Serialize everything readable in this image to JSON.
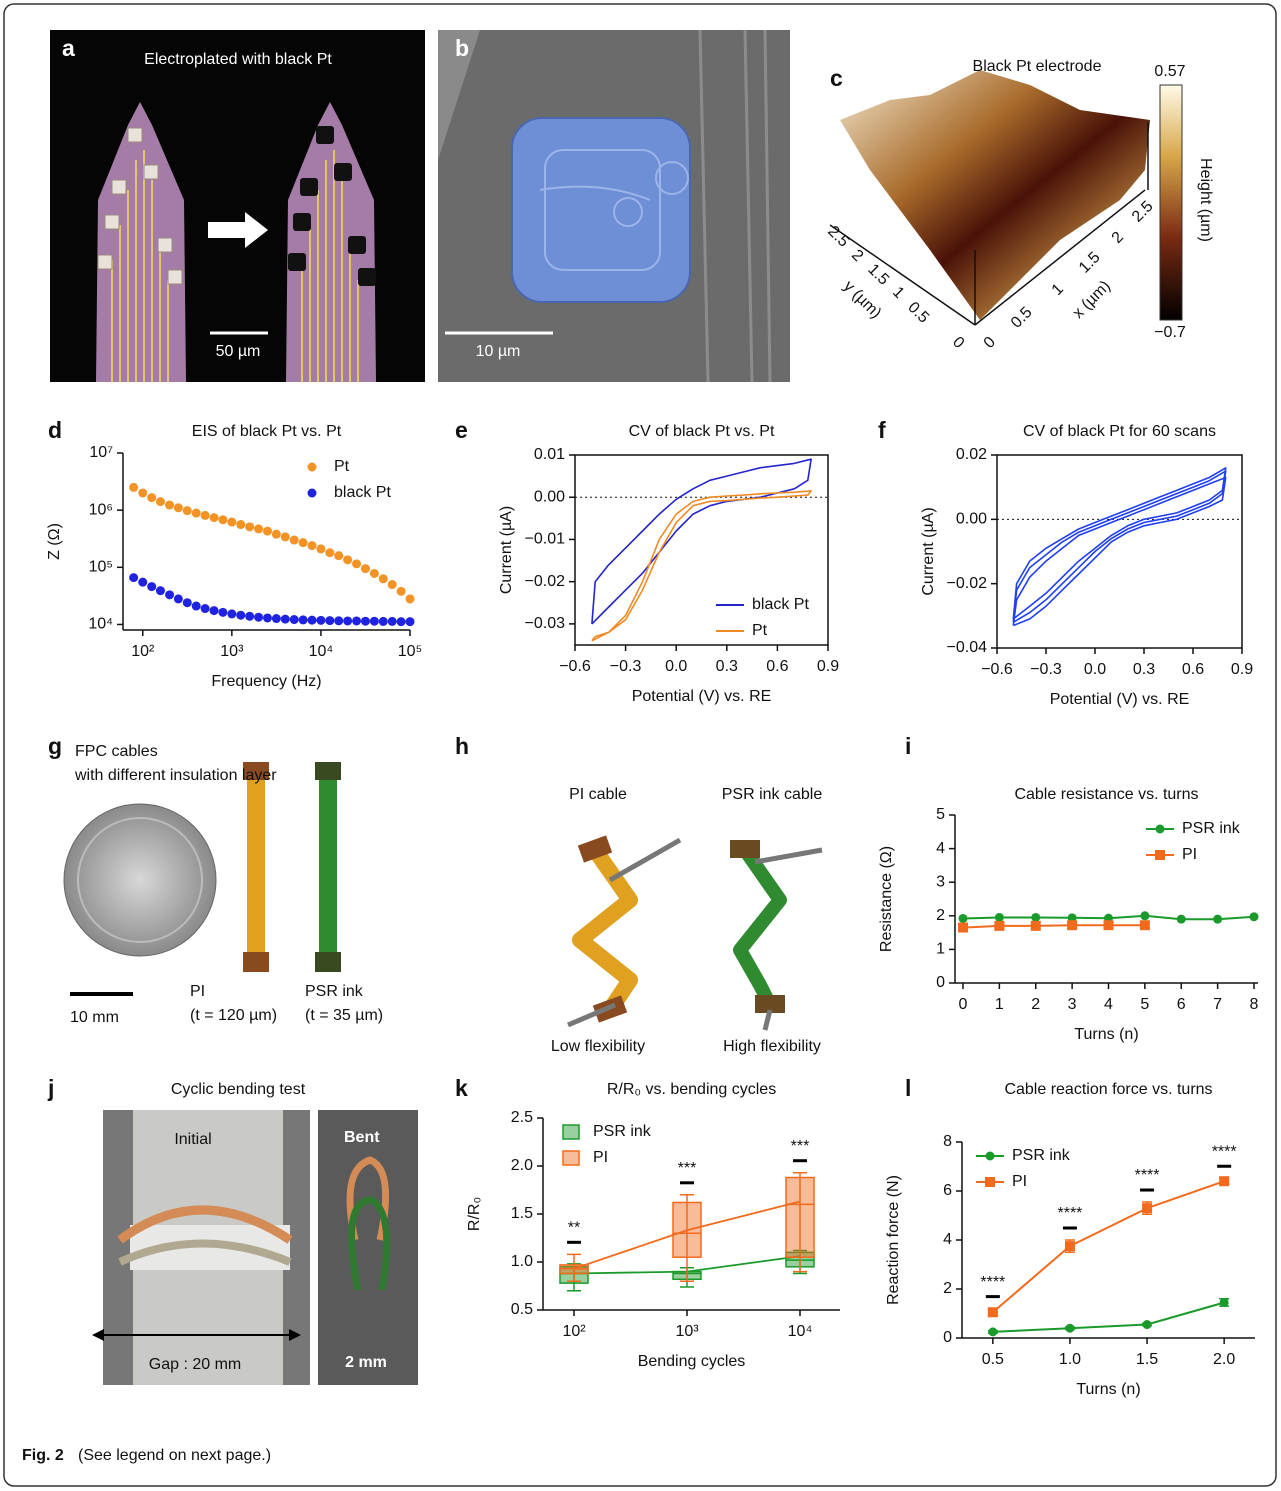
{
  "panels": {
    "a": {
      "label": "a",
      "title": "Electroplated with black Pt",
      "scale": "50 µm"
    },
    "b": {
      "label": "b",
      "scale": "10 µm"
    },
    "c": {
      "label": "c",
      "title": "Black Pt electrode",
      "colorbar_max": "0.57",
      "colorbar_min": "−0.7",
      "colorbar_label": "Height (µm)",
      "y_ticks": [
        "2.5",
        "2",
        "1.5",
        "1",
        "0.5",
        "0"
      ],
      "y_label": "y (µm)",
      "x_ticks": [
        "0",
        "0.5",
        "1",
        "1.5",
        "2",
        "2.5"
      ],
      "x_label": "x (µm)"
    },
    "g": {
      "label": "g",
      "title_1": "FPC cables",
      "title_2": "with different insulation layer",
      "pi": "PI",
      "pi_thickness": "(t = 120 µm)",
      "psr": "PSR ink",
      "psr_thickness": "(t = 35 µm)",
      "scale": "10 mm"
    },
    "h": {
      "label": "h",
      "pi": "PI cable",
      "psr": "PSR ink cable",
      "pi_note": "Low flexibility",
      "psr_note": "High flexibility"
    },
    "j": {
      "label": "j",
      "title": "Cyclic bending test",
      "initial": "Initial",
      "bent": "Bent",
      "gap": "Gap : 20 mm",
      "bent_gap": "2 mm"
    }
  },
  "chart_data": [
    {
      "panel": "d",
      "type": "scatter",
      "title": "EIS of black Pt vs. Pt",
      "x_label": "Frequency (Hz)",
      "y_label": "Z (Ω)",
      "xscale": "log",
      "yscale": "log",
      "xlim": [
        60,
        100000
      ],
      "ylim": [
        8000,
        10000000
      ],
      "xticks": [
        {
          "value": 100,
          "label": "10²"
        },
        {
          "value": 1000,
          "label": "10³"
        },
        {
          "value": 10000,
          "label": "10⁴"
        },
        {
          "value": 100000,
          "label": "10⁵"
        }
      ],
      "yticks": [
        {
          "value": 10000,
          "label": "10⁴"
        },
        {
          "value": 100000,
          "label": "10⁵"
        },
        {
          "value": 1000000,
          "label": "10⁶"
        },
        {
          "value": 10000000,
          "label": "10⁷"
        }
      ],
      "legend": "upper right",
      "x": [
        79,
        100,
        126,
        158,
        200,
        251,
        316,
        398,
        501,
        631,
        794,
        1000,
        1259,
        1585,
        1995,
        2512,
        3162,
        3981,
        5012,
        6310,
        7943,
        10000,
        12589,
        15849,
        19953,
        25119,
        31623,
        39811,
        50119,
        63096,
        79433,
        100000
      ],
      "series": [
        {
          "name": "Pt",
          "color": "#f39325",
          "values": [
            2500000,
            2000000,
            1660000,
            1410000,
            1230000,
            1100000,
            980000,
            890000,
            810000,
            740000,
            680000,
            620000,
            560000,
            510000,
            470000,
            430000,
            380000,
            340000,
            300000,
            270000,
            240000,
            210000,
            180000,
            160000,
            135000,
            115000,
            95000,
            78000,
            63000,
            50000,
            38000,
            28000
          ]
        },
        {
          "name": "black Pt",
          "color": "#1f23e0",
          "values": [
            66000,
            55000,
            46000,
            39000,
            33000,
            28000,
            24000,
            21000,
            19000,
            17500,
            16300,
            15300,
            14500,
            13900,
            13400,
            13000,
            12700,
            12400,
            12200,
            12000,
            11900,
            11800,
            11700,
            11600,
            11500,
            11500,
            11400,
            11400,
            11300,
            11300,
            11200,
            11200
          ]
        }
      ]
    },
    {
      "panel": "e",
      "type": "line",
      "title": "CV of black Pt vs. Pt",
      "x_label": "Potential (V) vs. RE",
      "y_label": "Current (µA)",
      "xlim": [
        -0.6,
        0.9
      ],
      "ylim": [
        -0.035,
        0.01
      ],
      "zero_line": true,
      "legend": "lower right",
      "xticks": [
        {
          "value": -0.6,
          "label": "−0.6"
        },
        {
          "value": -0.3,
          "label": "−0.3"
        },
        {
          "value": 0,
          "label": "0.0"
        },
        0.3,
        0.6,
        0.9
      ],
      "yticks": [
        {
          "value": -0.03,
          "label": "−0.03"
        },
        {
          "value": -0.02,
          "label": "−0.02"
        },
        {
          "value": -0.01,
          "label": "−0.01"
        },
        {
          "value": 0,
          "label": "0.00"
        },
        0.01
      ],
      "x": [
        -0.5,
        -0.48,
        -0.4,
        -0.3,
        -0.2,
        -0.1,
        0,
        0.1,
        0.2,
        0.3,
        0.4,
        0.5,
        0.6,
        0.7,
        0.8,
        0.78,
        0.7,
        0.6,
        0.5,
        0.4,
        0.3,
        0.2,
        0.1,
        0,
        -0.1,
        -0.2,
        -0.3,
        -0.4,
        -0.5
      ],
      "series": [
        {
          "name": "black Pt",
          "color": "#2424cc",
          "values": [
            -0.03,
            -0.02,
            -0.016,
            -0.012,
            -0.008,
            -0.004,
            -0.0005,
            0.002,
            0.004,
            0.005,
            0.006,
            0.007,
            0.0075,
            0.008,
            0.009,
            0.004,
            0.002,
            0.001,
            0,
            -0.0005,
            -0.001,
            -0.002,
            -0.004,
            -0.008,
            -0.013,
            -0.018,
            -0.022,
            -0.026,
            -0.03
          ]
        },
        {
          "name": "Pt",
          "color": "#f08a24",
          "values": [
            -0.034,
            -0.033,
            -0.032,
            -0.028,
            -0.02,
            -0.01,
            -0.004,
            -0.001,
            0,
            0.0003,
            0.0005,
            0.0008,
            0.001,
            0.0012,
            0.0015,
            0.0005,
            0.0003,
            0,
            -0.0002,
            -0.0005,
            -0.0008,
            -0.001,
            -0.002,
            -0.006,
            -0.013,
            -0.022,
            -0.029,
            -0.032,
            -0.034
          ]
        }
      ]
    },
    {
      "panel": "f",
      "type": "line",
      "title": "CV of black Pt for 60 scans",
      "x_label": "Potential (V) vs. RE",
      "y_label": "Current (µA)",
      "xlim": [
        -0.6,
        0.9
      ],
      "ylim": [
        -0.04,
        0.02
      ],
      "zero_line": true,
      "xticks": [
        {
          "value": -0.6,
          "label": "−0.6"
        },
        {
          "value": -0.3,
          "label": "−0.3"
        },
        {
          "value": 0,
          "label": "0.0"
        },
        0.3,
        0.6,
        0.9
      ],
      "yticks": [
        {
          "value": -0.04,
          "label": "−0.04"
        },
        {
          "value": -0.02,
          "label": "−0.02"
        },
        {
          "value": 0,
          "label": "0.00"
        },
        {
          "value": 0.02,
          "label": "0.02"
        }
      ],
      "x": [
        -0.5,
        -0.48,
        -0.4,
        -0.3,
        -0.2,
        -0.1,
        0,
        0.1,
        0.2,
        0.3,
        0.4,
        0.5,
        0.6,
        0.7,
        0.8,
        0.78,
        0.7,
        0.6,
        0.5,
        0.4,
        0.3,
        0.2,
        0.1,
        0,
        -0.1,
        -0.2,
        -0.3,
        -0.4,
        -0.5
      ],
      "series": [
        {
          "color": "#1f3ff0",
          "values": [
            -0.032,
            -0.022,
            -0.015,
            -0.011,
            -0.007,
            -0.004,
            -0.002,
            0,
            0.002,
            0.004,
            0.006,
            0.008,
            0.01,
            0.012,
            0.015,
            0.008,
            0.005,
            0.003,
            0.001,
            0,
            -0.001,
            -0.003,
            -0.006,
            -0.01,
            -0.015,
            -0.02,
            -0.025,
            -0.029,
            -0.032
          ]
        },
        {
          "color": "#1f3ff0",
          "values": [
            -0.033,
            -0.025,
            -0.018,
            -0.013,
            -0.009,
            -0.005,
            -0.003,
            -0.001,
            0.001,
            0.003,
            0.005,
            0.007,
            0.009,
            0.011,
            0.013,
            0.006,
            0.004,
            0.002,
            0,
            -0.001,
            -0.002,
            -0.004,
            -0.007,
            -0.012,
            -0.017,
            -0.022,
            -0.027,
            -0.031,
            -0.033
          ]
        },
        {
          "color": "#1f3ff0",
          "values": [
            -0.031,
            -0.02,
            -0.013,
            -0.009,
            -0.006,
            -0.003,
            -0.001,
            0.001,
            0.003,
            0.005,
            0.007,
            0.009,
            0.011,
            0.013,
            0.016,
            0.009,
            0.006,
            0.004,
            0.002,
            0.001,
            0,
            -0.002,
            -0.005,
            -0.009,
            -0.013,
            -0.018,
            -0.023,
            -0.027,
            -0.031
          ]
        }
      ]
    },
    {
      "panel": "i",
      "type": "line",
      "title": "Cable resistance vs. turns",
      "x_label": "Turns (n)",
      "y_label": "Resistance (Ω)",
      "xlim": [
        0,
        8
      ],
      "ylim": [
        0,
        5
      ],
      "xticks": [
        0,
        1,
        2,
        3,
        4,
        5,
        6,
        7,
        8
      ],
      "yticks": [
        0,
        1,
        2,
        3,
        4,
        5
      ],
      "legend": "upper right",
      "x": [
        0,
        1,
        2,
        3,
        4,
        5,
        6,
        7,
        8
      ],
      "series": [
        {
          "name": "PSR ink",
          "color": "#1a9a2a",
          "marker": "circle",
          "values": [
            1.92,
            1.95,
            1.95,
            1.94,
            1.93,
            2.0,
            1.9,
            1.9,
            1.97
          ]
        },
        {
          "name": "PI",
          "color": "#f26b1d",
          "marker": "square",
          "values": [
            1.65,
            1.7,
            1.7,
            1.72,
            1.72,
            1.72,
            null,
            null,
            null
          ]
        }
      ]
    },
    {
      "panel": "k",
      "type": "box",
      "title": "R/R₀ vs. bending cycles",
      "x_label": "Bending cycles",
      "y_label": "R/R₀",
      "ylim": [
        0.5,
        2.5
      ],
      "yticks": [
        0.5,
        {
          "value": 1,
          "label": "1.0"
        },
        1.5,
        {
          "value": 2,
          "label": "2.0"
        },
        2.5
      ],
      "legend": "upper left",
      "categories": [
        "10²",
        "10³",
        "10⁴"
      ],
      "annotations": [
        "**",
        "***",
        "***"
      ],
      "series": [
        {
          "name": "PSR ink",
          "color": "#1a9a2a",
          "values": [
            0.88,
            0.9,
            1.06
          ],
          "min": [
            0.7,
            0.74,
            0.88
          ],
          "q1": [
            0.78,
            0.82,
            0.95
          ],
          "median": [
            0.88,
            0.88,
            1.02
          ],
          "q3": [
            0.95,
            0.9,
            1.1
          ],
          "max": [
            0.98,
            0.94,
            1.12
          ]
        },
        {
          "name": "PI",
          "color": "#f26b1d",
          "values": [
            0.93,
            1.33,
            1.63
          ],
          "min": [
            0.8,
            0.8,
            0.9
          ],
          "q1": [
            0.88,
            1.05,
            1.05
          ],
          "median": [
            0.93,
            1.3,
            1.6
          ],
          "q3": [
            0.97,
            1.62,
            1.88
          ],
          "max": [
            1.08,
            1.7,
            1.93
          ]
        }
      ]
    },
    {
      "panel": "l",
      "type": "line",
      "title": "Cable reaction force vs. turns",
      "x_label": "Turns (n)",
      "y_label": "Reaction force (N)",
      "xlim": [
        0.3,
        2.2
      ],
      "ylim": [
        0,
        8
      ],
      "xticks": [
        0.5,
        {
          "value": 1,
          "label": "1.0"
        },
        1.5,
        {
          "value": 2,
          "label": "2.0"
        }
      ],
      "yticks": [
        0,
        2,
        4,
        6,
        8
      ],
      "legend": "upper left",
      "x": [
        0.5,
        1,
        1.5,
        2
      ],
      "annotations": [
        "****",
        "****",
        "****",
        "****"
      ],
      "series": [
        {
          "name": "PSR ink",
          "color": "#1a9a2a",
          "marker": "circle",
          "values": [
            0.25,
            0.4,
            0.55,
            1.45
          ],
          "errors": [
            0.05,
            0.05,
            0.05,
            0.15
          ]
        },
        {
          "name": "PI",
          "color": "#f26b1d",
          "marker": "square",
          "values": [
            1.05,
            3.75,
            5.3,
            6.4
          ],
          "errors": [
            0.15,
            0.25,
            0.25,
            0.12
          ]
        }
      ]
    }
  ],
  "caption": {
    "label": "Fig. 2",
    "text": "(See legend on next page.)"
  }
}
